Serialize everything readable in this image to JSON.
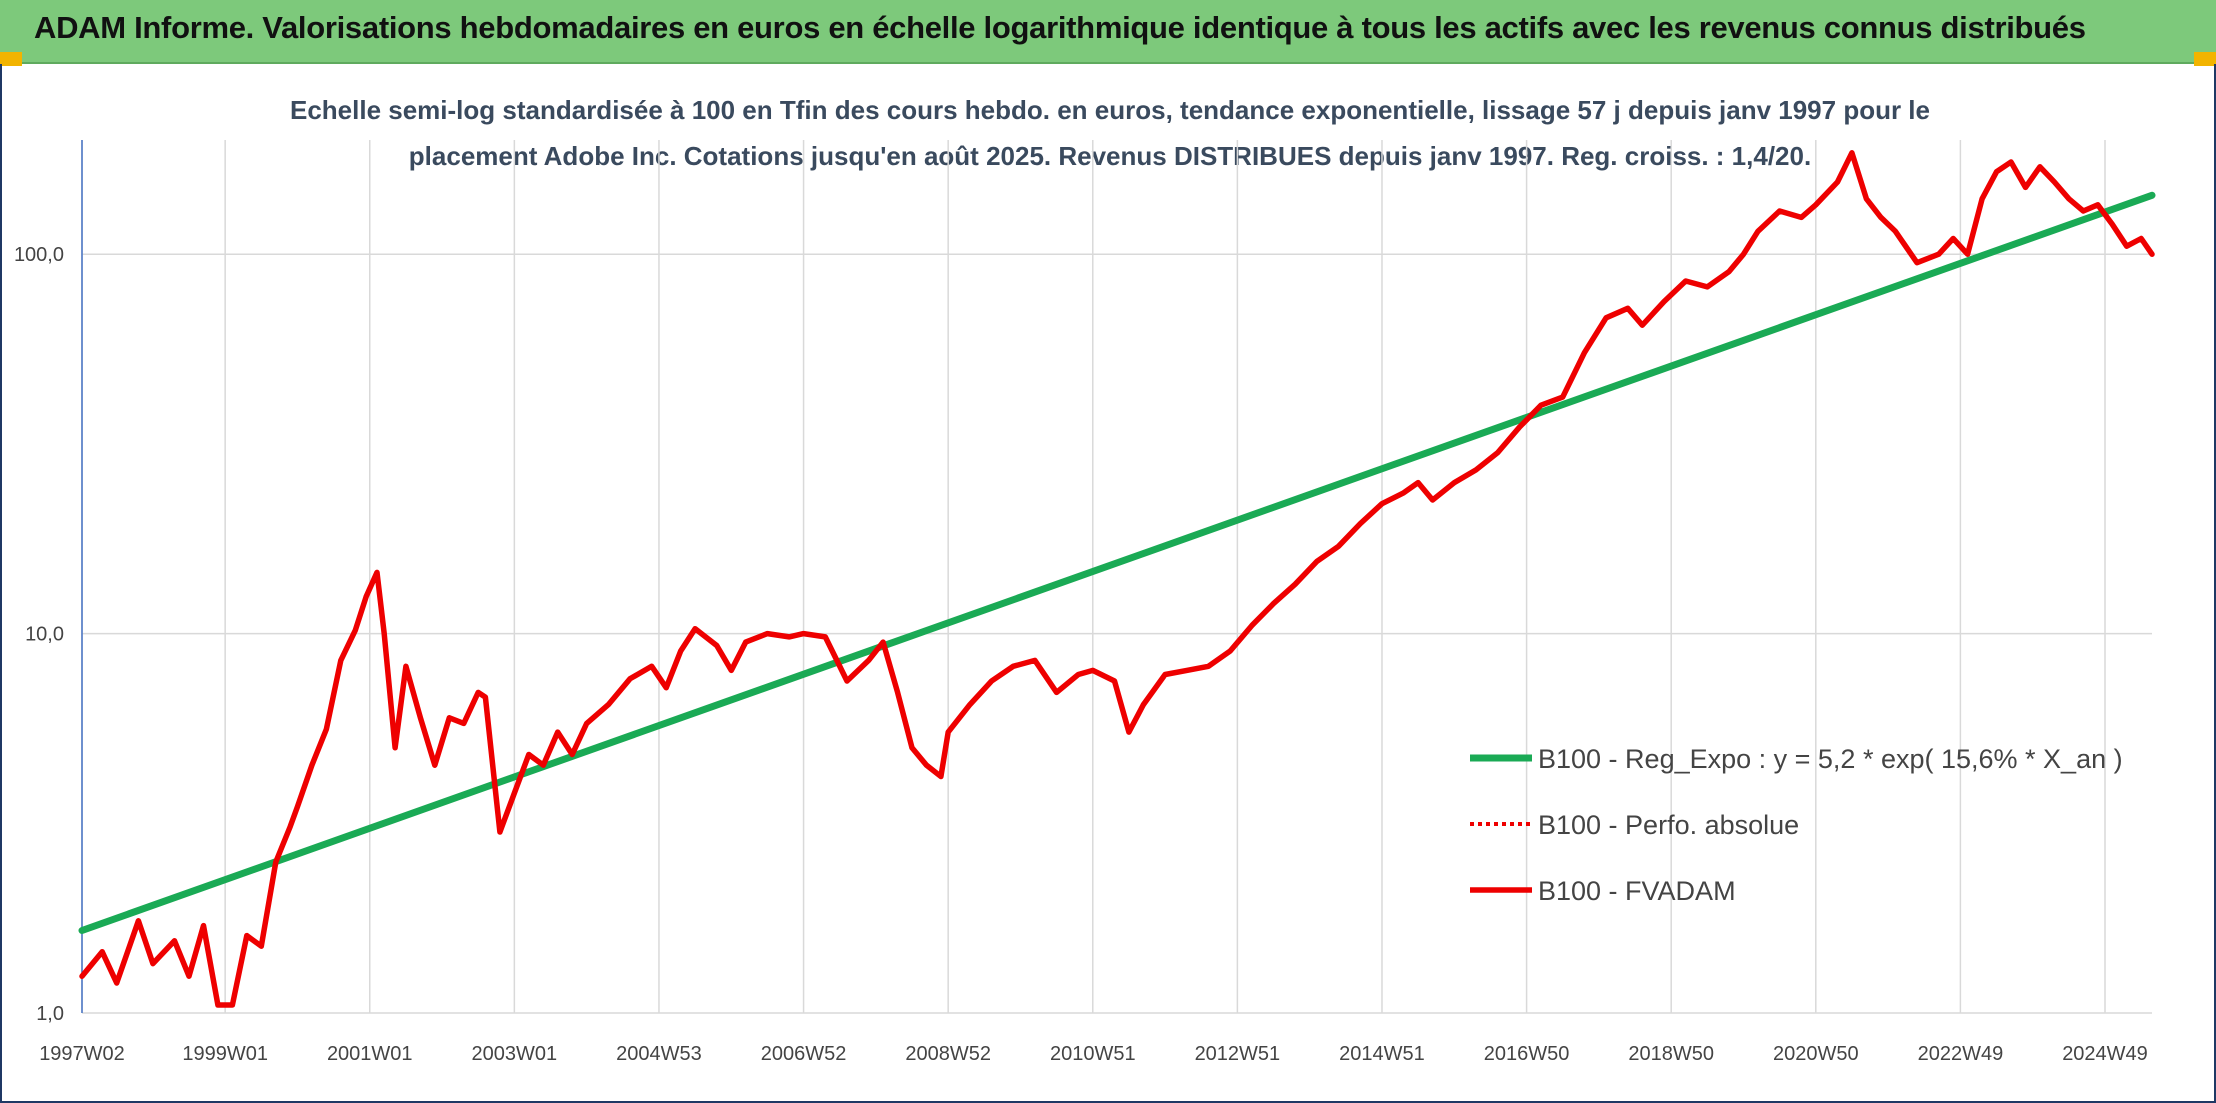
{
  "header": {
    "title": "ADAM Informe. Valorisations hebdomadaires en euros en échelle logarithmique identique à tous les actifs avec les revenus connus distribués"
  },
  "colors": {
    "banner": "#7dc97b",
    "trend": "#1aaa55",
    "series": "#ee0000",
    "grid": "#d9d9d9"
  },
  "chart_data": {
    "type": "line",
    "title_line1": "Echelle semi-log standardisée à 100 en Tfin des cours hebdo. en euros, tendance exponentielle, lissage 57 j depuis janv 1997 pour le",
    "title_line2": "placement Adobe Inc. Cotations jusqu'en août 2025. Revenus DISTRIBUES depuis janv 1997. Reg. croiss. : 1,4/20.",
    "y_scale": "log",
    "ylim": [
      1,
      200
    ],
    "y_ticks": [
      {
        "value": 1,
        "label": "1,0"
      },
      {
        "value": 10,
        "label": "10,0"
      },
      {
        "value": 100,
        "label": "100,0"
      }
    ],
    "xlim": [
      1997.02,
      2025.65
    ],
    "x_ticks": [
      {
        "year": 1997.02,
        "label": "1997W02"
      },
      {
        "year": 1999.0,
        "label": "1999W01"
      },
      {
        "year": 2001.0,
        "label": "2001W01"
      },
      {
        "year": 2003.0,
        "label": "2003W01"
      },
      {
        "year": 2005.0,
        "label": "2004W53"
      },
      {
        "year": 2007.0,
        "label": "2006W52"
      },
      {
        "year": 2009.0,
        "label": "2008W52"
      },
      {
        "year": 2011.0,
        "label": "2010W51"
      },
      {
        "year": 2013.0,
        "label": "2012W51"
      },
      {
        "year": 2015.0,
        "label": "2014W51"
      },
      {
        "year": 2017.0,
        "label": "2016W50"
      },
      {
        "year": 2019.0,
        "label": "2018W50"
      },
      {
        "year": 2021.0,
        "label": "2020W50"
      },
      {
        "year": 2023.0,
        "label": "2022W49"
      },
      {
        "year": 2025.0,
        "label": "2024W49"
      }
    ],
    "legend_position": "bottom-right",
    "series": [
      {
        "name": "B100 - Reg_Expo : y = 5,2 * exp( 15,6% *  X_an )",
        "style": "solid-green",
        "x": [
          1997.02,
          2025.65
        ],
        "y": [
          1.65,
          143
        ]
      },
      {
        "name": "B100 - Perfo. absolue",
        "style": "dotted-red",
        "x": [],
        "y": []
      },
      {
        "name": "B100 - FVADAM",
        "style": "solid-red",
        "x": [
          1997.02,
          1997.3,
          1997.5,
          1997.8,
          1998.0,
          1998.3,
          1998.5,
          1998.7,
          1998.9,
          1999.1,
          1999.3,
          1999.5,
          1999.7,
          1999.9,
          2000.0,
          2000.2,
          2000.4,
          2000.6,
          2000.8,
          2000.95,
          2001.1,
          2001.2,
          2001.35,
          2001.5,
          2001.7,
          2001.9,
          2002.1,
          2002.3,
          2002.5,
          2002.6,
          2002.7,
          2002.8,
          2003.0,
          2003.2,
          2003.4,
          2003.6,
          2003.8,
          2004.0,
          2004.3,
          2004.6,
          2004.9,
          2005.1,
          2005.3,
          2005.5,
          2005.8,
          2006.0,
          2006.2,
          2006.5,
          2006.8,
          2007.0,
          2007.3,
          2007.6,
          2007.9,
          2008.1,
          2008.3,
          2008.5,
          2008.7,
          2008.9,
          2009.0,
          2009.3,
          2009.6,
          2009.9,
          2010.2,
          2010.5,
          2010.8,
          2011.0,
          2011.3,
          2011.5,
          2011.7,
          2012.0,
          2012.3,
          2012.6,
          2012.9,
          2013.2,
          2013.5,
          2013.8,
          2014.1,
          2014.4,
          2014.7,
          2015.0,
          2015.3,
          2015.5,
          2015.7,
          2016.0,
          2016.3,
          2016.6,
          2016.9,
          2017.2,
          2017.5,
          2017.8,
          2018.1,
          2018.4,
          2018.6,
          2018.9,
          2019.2,
          2019.5,
          2019.8,
          2020.0,
          2020.2,
          2020.5,
          2020.8,
          2021.0,
          2021.3,
          2021.5,
          2021.7,
          2021.9,
          2022.1,
          2022.4,
          2022.7,
          2022.9,
          2023.1,
          2023.3,
          2023.5,
          2023.7,
          2023.9,
          2024.1,
          2024.3,
          2024.5,
          2024.7,
          2024.9,
          2025.1,
          2025.3,
          2025.5,
          2025.65
        ],
        "y": [
          1.25,
          1.45,
          1.2,
          1.75,
          1.35,
          1.55,
          1.25,
          1.7,
          1.05,
          1.05,
          1.6,
          1.5,
          2.5,
          3.1,
          3.5,
          4.5,
          5.6,
          8.5,
          10.2,
          12.5,
          14.5,
          10.0,
          5.0,
          8.2,
          6.0,
          4.5,
          6.0,
          5.8,
          7.0,
          6.8,
          4.5,
          3.0,
          3.8,
          4.8,
          4.5,
          5.5,
          4.8,
          5.8,
          6.5,
          7.6,
          8.2,
          7.2,
          9.0,
          10.3,
          9.3,
          8.0,
          9.5,
          10.0,
          9.8,
          10.0,
          9.8,
          7.5,
          8.5,
          9.5,
          7.0,
          5.0,
          4.5,
          4.2,
          5.5,
          6.5,
          7.5,
          8.2,
          8.5,
          7.0,
          7.8,
          8.0,
          7.5,
          5.5,
          6.5,
          7.8,
          8.0,
          8.2,
          9.0,
          10.5,
          12.0,
          13.5,
          15.5,
          17.0,
          19.5,
          22.0,
          23.5,
          25.0,
          22.5,
          25.0,
          27.0,
          30.0,
          35.0,
          40.0,
          42.0,
          55.0,
          68.0,
          72.0,
          65.0,
          75.0,
          85.0,
          82.0,
          90.0,
          100.0,
          115.0,
          130.0,
          125.0,
          135.0,
          155.0,
          185.0,
          140.0,
          125.0,
          115.0,
          95.0,
          100.0,
          110.0,
          100.0,
          140.0,
          165.0,
          175.0,
          150.0,
          170.0,
          155.0,
          140.0,
          130.0,
          135.0,
          120.0,
          105.0,
          110.0,
          100.0
        ]
      }
    ]
  }
}
